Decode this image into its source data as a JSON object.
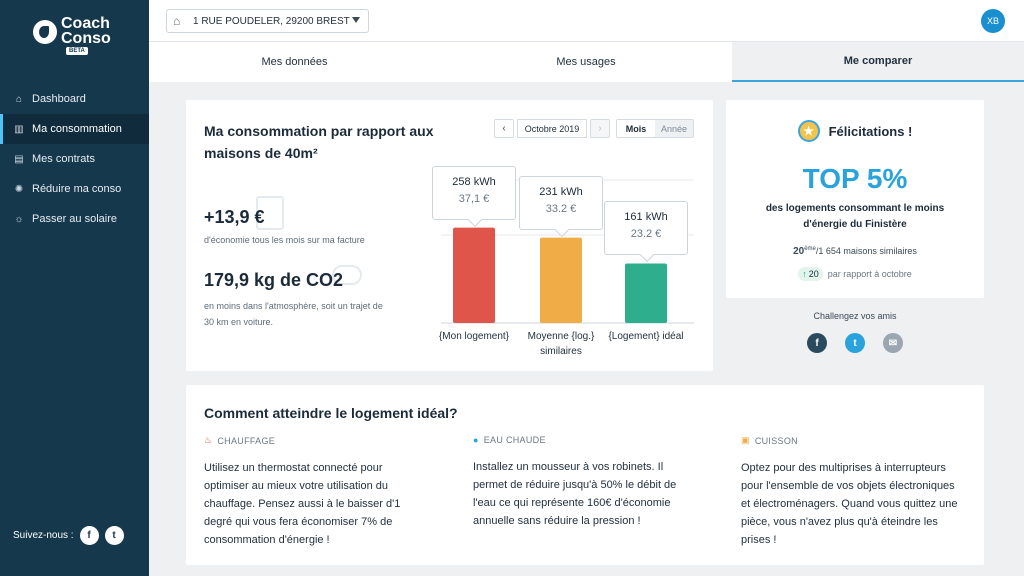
{
  "sidebar": {
    "logo_line1": "Coach",
    "logo_line2": "Conso",
    "beta": "BETA",
    "items": [
      {
        "label": "Dashboard",
        "icon": "home-icon"
      },
      {
        "label": "Ma consommation",
        "icon": "bar-chart-icon"
      },
      {
        "label": "Mes contrats",
        "icon": "document-icon"
      },
      {
        "label": "Réduire ma conso",
        "icon": "bulb-icon"
      },
      {
        "label": "Passer au solaire",
        "icon": "sun-icon"
      }
    ],
    "follow_label": "Suivez-nous :",
    "facebook": "f",
    "twitter": "t"
  },
  "header": {
    "address": "1 RUE POUDELER, 29200 BREST",
    "avatar_initials": "XB"
  },
  "tabs": [
    {
      "label": "Mes données"
    },
    {
      "label": "Mes usages"
    },
    {
      "label": "Me comparer",
      "active": true
    }
  ],
  "comparison": {
    "title": "Ma consommation par rapport aux maisons de 40m²",
    "savings_value": "+13,9 €",
    "savings_desc": "d'économie tous les mois sur ma facture",
    "co2_value": "179,9 kg de CO2",
    "co2_desc": "en moins dans l'atmosphère, soit un trajet de 30 km en voiture.",
    "period_prev": "‹",
    "period_label": "Octobre 2019",
    "period_next": "›",
    "toggle_month": "Mois",
    "toggle_year": "Année"
  },
  "chart_data": {
    "type": "bar",
    "categories": [
      "{Mon logement}",
      "Moyenne {log.} similaires",
      "{Logement} idéal"
    ],
    "values": [
      258,
      231,
      161
    ],
    "value_labels": [
      "258 kWh",
      "231 kWh",
      "161 kWh"
    ],
    "cost_labels": [
      "37,1 €",
      "33.2 €",
      "23.2 €"
    ],
    "colors": [
      "#e0554a",
      "#f0ac47",
      "#2fae8e"
    ],
    "ylim": [
      0,
      300
    ],
    "grid": true
  },
  "ranking": {
    "congrats": "Félicitations !",
    "top": "TOP 5%",
    "top_desc": "des logements consommant le moins d'énergie du Finistère",
    "rank": "20",
    "rank_sup": "ème",
    "rank_total": "/1 654 maisons similaires",
    "delta_value": "20",
    "delta_desc": "par rapport à octobre",
    "challenge": "Challengez vos amis"
  },
  "tips": {
    "title": "Comment atteindre le logement idéal?",
    "items": [
      {
        "category": "CHAUFFAGE",
        "icon": "flame-icon",
        "text": "Utilisez un thermostat connecté pour optimiser au mieux votre utilisation du chauffage. Pensez aussi à le baisser d'1 degré qui vous fera économiser 7% de consommation d'énergie !"
      },
      {
        "category": "EAU CHAUDE",
        "icon": "water-drop-icon",
        "text": "Installez un mousseur à vos robinets. Il permet de réduire jusqu'à 50% le débit de l'eau ce qui représente 160€ d'économie annuelle sans réduire la pression !"
      },
      {
        "category": "CUISSON",
        "icon": "stove-icon",
        "text": "Optez pour des multiprises à interrupteurs pour l'ensemble de vos objets électroniques et électroménagers. Quand vous quittez une pièce, vous n'avez plus qu'à éteindre les prises !"
      }
    ]
  }
}
